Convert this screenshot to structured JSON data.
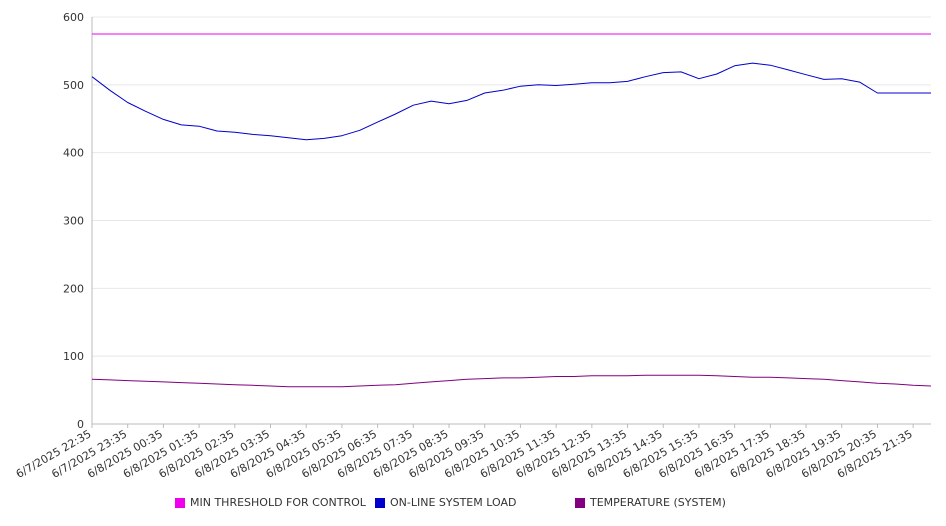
{
  "chart_data": {
    "type": "line",
    "title": "",
    "xlabel": "",
    "ylabel": "",
    "ylim": [
      0,
      600
    ],
    "yticks": [
      0,
      100,
      200,
      300,
      400,
      500,
      600
    ],
    "grid": true,
    "legend_position": "bottom",
    "x_tick_labels": [
      "6/7/2025 22:35",
      "6/7/2025 23:35",
      "6/8/2025 00:35",
      "6/8/2025 01:35",
      "6/8/2025 02:35",
      "6/8/2025 03:35",
      "6/8/2025 04:35",
      "6/8/2025 05:35",
      "6/8/2025 06:35",
      "6/8/2025 07:35",
      "6/8/2025 08:35",
      "6/8/2025 09:35",
      "6/8/2025 10:35",
      "6/8/2025 11:35",
      "6/8/2025 12:35",
      "6/8/2025 13:35",
      "6/8/2025 14:35",
      "6/8/2025 15:35",
      "6/8/2025 16:35",
      "6/8/2025 17:35",
      "6/8/2025 18:35",
      "6/8/2025 19:35",
      "6/8/2025 20:35",
      "6/8/2025 21:35"
    ],
    "x": [
      "6/7/2025 22:35",
      "6/7/2025 23:05",
      "6/7/2025 23:35",
      "6/8/2025 00:05",
      "6/8/2025 00:35",
      "6/8/2025 01:05",
      "6/8/2025 01:35",
      "6/8/2025 02:05",
      "6/8/2025 02:35",
      "6/8/2025 03:05",
      "6/8/2025 03:35",
      "6/8/2025 04:05",
      "6/8/2025 04:35",
      "6/8/2025 05:05",
      "6/8/2025 05:35",
      "6/8/2025 06:05",
      "6/8/2025 06:35",
      "6/8/2025 07:05",
      "6/8/2025 07:35",
      "6/8/2025 08:05",
      "6/8/2025 08:35",
      "6/8/2025 09:05",
      "6/8/2025 09:35",
      "6/8/2025 10:05",
      "6/8/2025 10:35",
      "6/8/2025 11:05",
      "6/8/2025 11:35",
      "6/8/2025 12:05",
      "6/8/2025 12:35",
      "6/8/2025 13:05",
      "6/8/2025 13:35",
      "6/8/2025 14:05",
      "6/8/2025 14:35",
      "6/8/2025 15:05",
      "6/8/2025 15:35",
      "6/8/2025 16:05",
      "6/8/2025 16:35",
      "6/8/2025 17:05",
      "6/8/2025 17:35",
      "6/8/2025 18:05",
      "6/8/2025 18:35",
      "6/8/2025 19:05",
      "6/8/2025 19:35",
      "6/8/2025 20:05",
      "6/8/2025 20:35",
      "6/8/2025 21:05",
      "6/8/2025 21:35",
      "6/8/2025 22:05"
    ],
    "series": [
      {
        "name": "MIN THRESHOLD FOR CONTROL",
        "color": "#ee00ee",
        "values": [
          575,
          575,
          575,
          575,
          575,
          575,
          575,
          575,
          575,
          575,
          575,
          575,
          575,
          575,
          575,
          575,
          575,
          575,
          575,
          575,
          575,
          575,
          575,
          575,
          575,
          575,
          575,
          575,
          575,
          575,
          575,
          575,
          575,
          575,
          575,
          575,
          575,
          575,
          575,
          575,
          575,
          575,
          575,
          575,
          575,
          575,
          575,
          575
        ]
      },
      {
        "name": "ON-LINE SYSTEM LOAD",
        "color": "#0000cc",
        "values": [
          512,
          492,
          474,
          461,
          449,
          441,
          439,
          432,
          430,
          427,
          425,
          422,
          419,
          421,
          425,
          433,
          445,
          457,
          470,
          476,
          472,
          477,
          488,
          492,
          498,
          500,
          499,
          501,
          503,
          503,
          505,
          512,
          518,
          519,
          509,
          516,
          528,
          532,
          529,
          522,
          515,
          508,
          509,
          504,
          488,
          488,
          488,
          488
        ]
      },
      {
        "name": "TEMPERATURE (SYSTEM)",
        "color": "#800080",
        "values": [
          66,
          65,
          64,
          63,
          62,
          61,
          60,
          59,
          58,
          57,
          56,
          55,
          55,
          55,
          55,
          56,
          57,
          58,
          60,
          62,
          64,
          66,
          67,
          68,
          68,
          69,
          70,
          70,
          71,
          71,
          71,
          72,
          72,
          72,
          72,
          71,
          70,
          69,
          69,
          68,
          67,
          66,
          64,
          62,
          60,
          59,
          57,
          56
        ]
      }
    ]
  }
}
